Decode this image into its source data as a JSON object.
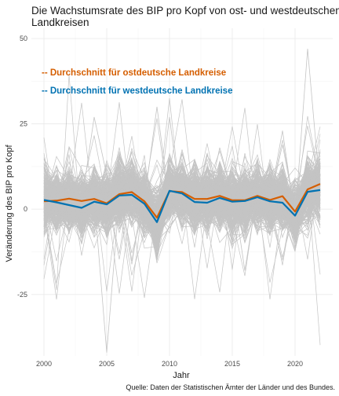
{
  "chart_data": {
    "type": "line",
    "title": "Die Wachstumsrate des BIP pro Kopf von ost- und westdeutschen Landkreisen",
    "title_lines": [
      "Die Wachstumsrate des BIP pro Kopf von ost- und westdeutschen",
      "Landkreisen"
    ],
    "xlabel": "Jahr",
    "ylabel": "Veränderung des BIP pro Kopf",
    "caption": "Quelle: Daten der Statistischen Ämter der Länder und des Bundes.",
    "xlim": [
      1999,
      2023
    ],
    "ylim": [
      -43,
      53
    ],
    "x_ticks": [
      2000,
      2005,
      2010,
      2015,
      2020
    ],
    "y_ticks": [
      -25,
      0,
      25,
      50
    ],
    "y_tick_labels": [
      "-25",
      "0",
      "25",
      "50"
    ],
    "grid": true,
    "legend_placement": "top-left inside",
    "x": [
      2000,
      2001,
      2002,
      2003,
      2004,
      2005,
      2006,
      2007,
      2008,
      2009,
      2010,
      2011,
      2012,
      2013,
      2014,
      2015,
      2016,
      2017,
      2018,
      2019,
      2020,
      2021,
      2022
    ],
    "series": [
      {
        "name": "Durchschnitt für ostdeutsche Landkreise",
        "legend_label": "-- Durchschnitt für ostdeutsche Landkreise",
        "color": "#d55e00",
        "values": [
          2.3,
          2.5,
          3.1,
          2.4,
          3.0,
          1.7,
          4.4,
          5.0,
          2.3,
          -2.5,
          5.3,
          5.0,
          3.0,
          3.0,
          3.9,
          2.6,
          2.6,
          3.9,
          2.7,
          3.8,
          -0.7,
          5.8,
          7.4
        ]
      },
      {
        "name": "Durchschnitt für westdeutsche Landkreise",
        "legend_label": "-- Durchschnitt für westdeutsche Landkreise",
        "color": "#0072b2",
        "values": [
          2.7,
          2.0,
          1.2,
          0.4,
          2.2,
          1.4,
          4.0,
          4.2,
          1.6,
          -3.8,
          5.4,
          4.6,
          2.1,
          1.9,
          3.3,
          2.2,
          2.4,
          3.5,
          2.3,
          1.9,
          -1.9,
          5.1,
          5.6
        ]
      }
    ],
    "background_lines": {
      "color": "#c4c4c4",
      "description_count": 400
    }
  }
}
